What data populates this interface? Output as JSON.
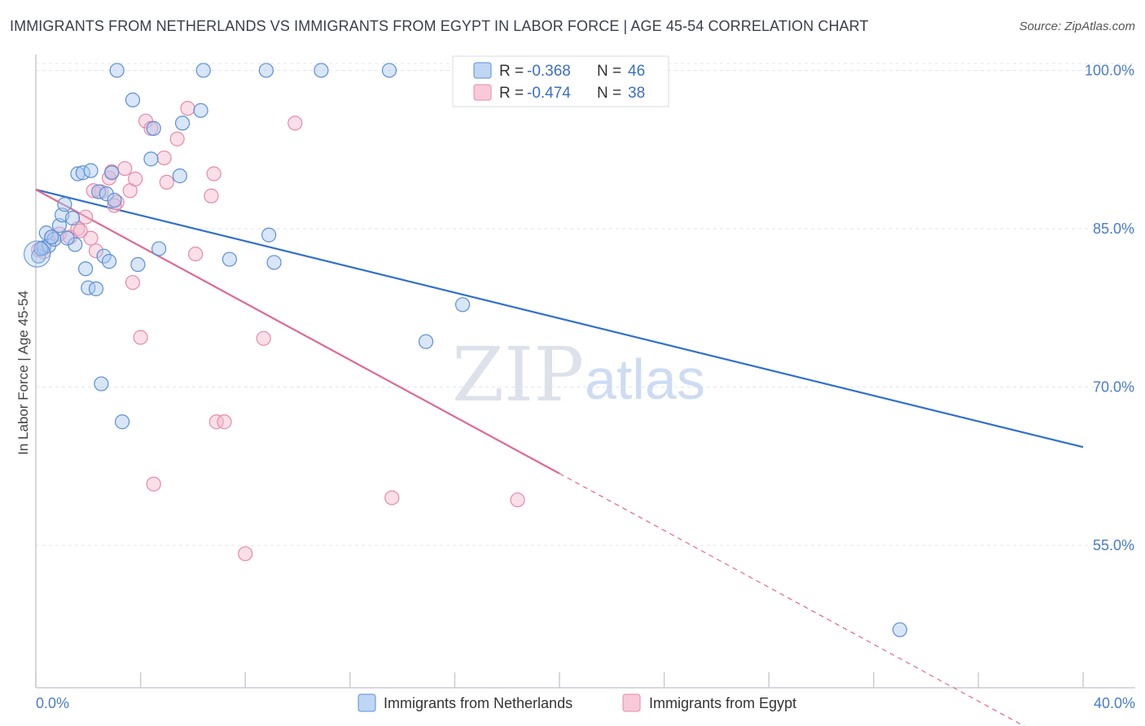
{
  "title": "IMMIGRANTS FROM NETHERLANDS VS IMMIGRANTS FROM EGYPT IN LABOR FORCE | AGE 45-54 CORRELATION CHART",
  "source": "Source: ZipAtlas.com",
  "watermark": {
    "zip": "ZIP",
    "atlas": "atlas"
  },
  "colors": {
    "netherlands_fill": "#a9c8f0",
    "netherlands_stroke": "#5b8fd6",
    "netherlands_line": "#2f6fcf",
    "egypt_fill": "#f5b8cc",
    "egypt_stroke": "#e58aa8",
    "egypt_line": "#e0698f"
  },
  "legend": {
    "netherlands": {
      "r_label": "R =",
      "r_value": "-0.368",
      "n_label": "N =",
      "n_value": "46"
    },
    "egypt": {
      "r_label": "R =",
      "r_value": "-0.474",
      "n_label": "N =",
      "n_value": "38"
    }
  },
  "chart_data": {
    "type": "scatter",
    "title": "IMMIGRANTS FROM NETHERLANDS VS IMMIGRANTS FROM EGYPT IN LABOR FORCE | AGE 45-54 CORRELATION CHART",
    "xlabel": "",
    "ylabel": "In Labor Force | Age 45-54",
    "xlim": [
      0,
      40
    ],
    "ylim": [
      41.5,
      101.5
    ],
    "x_tick_labels": [
      "0.0%",
      "40.0%"
    ],
    "y_ticks": [
      55,
      70,
      85,
      100
    ],
    "y_tick_labels": [
      "55.0%",
      "70.0%",
      "85.0%",
      "100.0%"
    ],
    "series": [
      {
        "name": "Immigrants from Netherlands",
        "points": [
          [
            0.1,
            82.4
          ],
          [
            0.3,
            83.2
          ],
          [
            0.5,
            83.4
          ],
          [
            0.4,
            84.6
          ],
          [
            0.7,
            84.0
          ],
          [
            0.9,
            85.3
          ],
          [
            1.0,
            86.3
          ],
          [
            1.1,
            87.3
          ],
          [
            1.5,
            83.5
          ],
          [
            1.6,
            90.2
          ],
          [
            1.8,
            90.3
          ],
          [
            2.1,
            90.5
          ],
          [
            2.4,
            88.5
          ],
          [
            2.7,
            88.3
          ],
          [
            2.9,
            90.3
          ],
          [
            3.0,
            87.7
          ],
          [
            3.1,
            100.0
          ],
          [
            3.7,
            97.2
          ],
          [
            4.4,
            91.6
          ],
          [
            4.5,
            94.5
          ],
          [
            4.7,
            83.1
          ],
          [
            5.6,
            95.0
          ],
          [
            6.3,
            96.2
          ],
          [
            6.4,
            100.0
          ],
          [
            7.4,
            82.1
          ],
          [
            8.8,
            100.0
          ],
          [
            8.9,
            84.4
          ],
          [
            9.1,
            81.8
          ],
          [
            10.9,
            100.0
          ],
          [
            13.5,
            100.0
          ],
          [
            1.4,
            86.0
          ],
          [
            1.9,
            81.2
          ],
          [
            2.0,
            79.4
          ],
          [
            2.3,
            79.3
          ],
          [
            2.6,
            82.4
          ],
          [
            2.8,
            81.9
          ],
          [
            3.9,
            81.6
          ],
          [
            5.5,
            90.0
          ],
          [
            2.5,
            70.3
          ],
          [
            3.3,
            66.7
          ],
          [
            14.9,
            74.3
          ],
          [
            16.3,
            77.8
          ],
          [
            33.0,
            47.0
          ],
          [
            0.2,
            83.1
          ],
          [
            0.6,
            84.2
          ],
          [
            1.2,
            84.1
          ]
        ]
      },
      {
        "name": "Immigrants from Egypt",
        "points": [
          [
            0.1,
            83.0
          ],
          [
            0.3,
            82.8
          ],
          [
            0.6,
            84.2
          ],
          [
            0.9,
            84.5
          ],
          [
            1.3,
            84.2
          ],
          [
            1.6,
            85.0
          ],
          [
            1.9,
            86.1
          ],
          [
            2.1,
            84.1
          ],
          [
            2.3,
            82.9
          ],
          [
            2.5,
            88.5
          ],
          [
            2.8,
            89.8
          ],
          [
            3.1,
            87.5
          ],
          [
            3.4,
            90.7
          ],
          [
            3.6,
            88.6
          ],
          [
            3.8,
            89.7
          ],
          [
            4.2,
            95.2
          ],
          [
            4.4,
            94.5
          ],
          [
            4.9,
            91.7
          ],
          [
            5.0,
            89.4
          ],
          [
            5.4,
            93.5
          ],
          [
            5.8,
            96.4
          ],
          [
            6.1,
            82.6
          ],
          [
            6.7,
            88.1
          ],
          [
            6.8,
            90.2
          ],
          [
            9.9,
            95.0
          ],
          [
            3.7,
            79.9
          ],
          [
            4.0,
            74.7
          ],
          [
            6.9,
            66.7
          ],
          [
            7.2,
            66.7
          ],
          [
            8.7,
            74.6
          ],
          [
            4.5,
            60.8
          ],
          [
            8.0,
            54.2
          ],
          [
            13.6,
            59.5
          ],
          [
            18.4,
            59.3
          ],
          [
            2.9,
            90.4
          ],
          [
            2.2,
            88.6
          ],
          [
            3.0,
            87.2
          ],
          [
            1.7,
            84.8
          ]
        ]
      }
    ],
    "trend_lines": [
      {
        "name": "Immigrants from Netherlands",
        "x": [
          0,
          40
        ],
        "y": [
          88.7,
          64.3
        ]
      },
      {
        "name": "Immigrants from Egypt",
        "x": [
          0,
          20
        ],
        "y": [
          88.7,
          61.8
        ],
        "dashed_extension": {
          "x": [
            20,
            37.8
          ],
          "y": [
            61.8,
            37.8
          ]
        }
      }
    ],
    "legend": [
      "Immigrants from Netherlands",
      "Immigrants from Egypt"
    ]
  }
}
